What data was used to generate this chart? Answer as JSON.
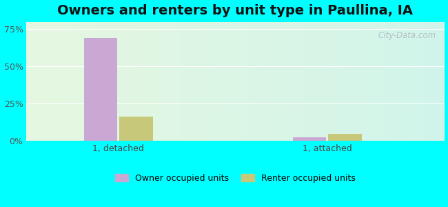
{
  "title": "Owners and renters by unit type in Paullina, IA",
  "categories": [
    "1, detached",
    "1, attached"
  ],
  "owner_values": [
    69.0,
    2.0
  ],
  "renter_values": [
    16.0,
    4.5
  ],
  "owner_color": "#c9a8d4",
  "renter_color": "#c8c87a",
  "bar_width": 0.08,
  "group_positions": [
    0.22,
    0.72
  ],
  "ylim": [
    0,
    80
  ],
  "yticks": [
    0,
    25,
    50,
    75
  ],
  "ytick_labels": [
    "0%",
    "25%",
    "50%",
    "75%"
  ],
  "xlim": [
    0.0,
    1.0
  ],
  "title_fontsize": 14,
  "tick_fontsize": 9,
  "legend_fontsize": 9,
  "background_color": "#00ffff",
  "watermark": "City-Data.com",
  "grid_color": "#dddddd"
}
